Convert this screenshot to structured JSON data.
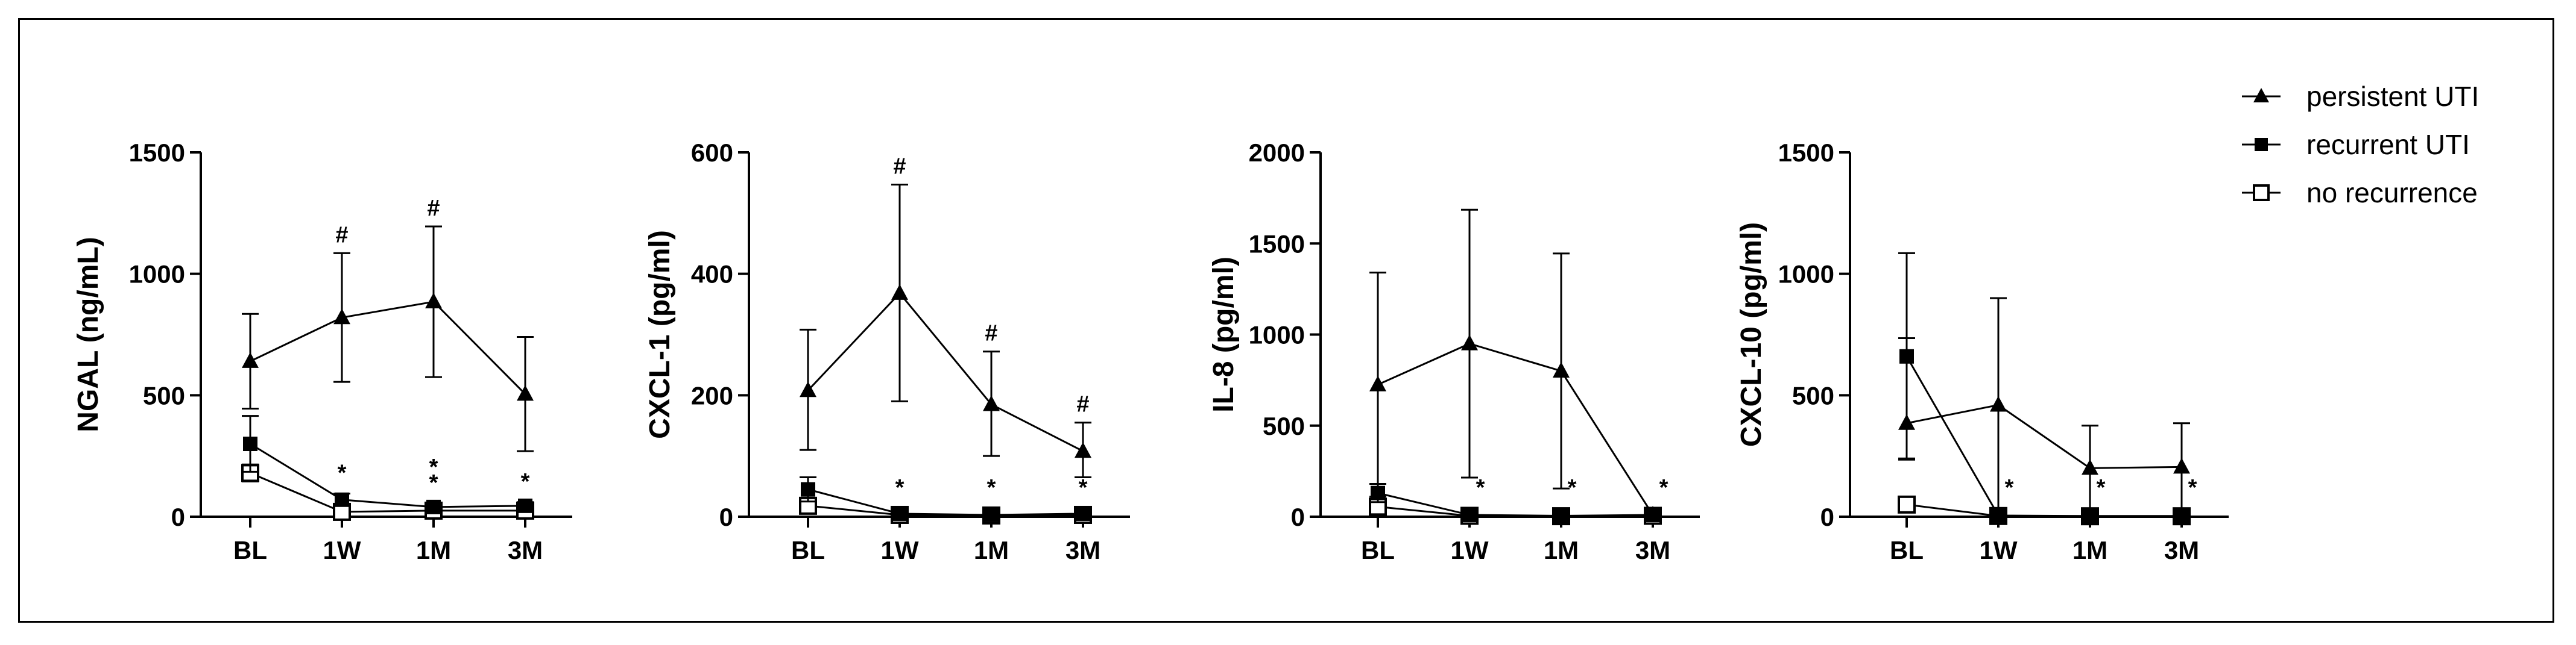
{
  "legend": [
    {
      "name": "persistent UTI",
      "marker": "triangle"
    },
    {
      "name": "recurrent UTI",
      "marker": "square-filled"
    },
    {
      "name": "no recurrence",
      "marker": "square-open"
    }
  ],
  "chart_data": [
    {
      "type": "line",
      "ylabel": "NGAL (ng/mL)",
      "categories": [
        "BL",
        "1W",
        "1M",
        "3M"
      ],
      "ylim": [
        0,
        1500
      ],
      "yticks": [
        0,
        500,
        1000,
        1500
      ],
      "series": [
        {
          "name": "persistent UTI",
          "values": [
            640,
            820,
            885,
            505
          ],
          "err_hi": [
            835,
            1085,
            1195,
            740
          ],
          "err_lo": [
            445,
            555,
            575,
            270
          ]
        },
        {
          "name": "recurrent UTI",
          "values": [
            300,
            70,
            40,
            45
          ],
          "err_hi": [
            415,
            95,
            55,
            60
          ],
          "err_lo": [
            185,
            45,
            25,
            30
          ]
        },
        {
          "name": "no recurrence",
          "values": [
            180,
            20,
            25,
            25
          ],
          "err_hi": [
            215,
            30,
            35,
            35
          ],
          "err_lo": [
            145,
            10,
            15,
            15
          ]
        }
      ],
      "annotations": [
        {
          "category": "1W",
          "y": 1085,
          "text": "#"
        },
        {
          "category": "1M",
          "y": 1195,
          "text": "#"
        },
        {
          "category": "1W",
          "y": 95,
          "text": "*"
        },
        {
          "category": "1M",
          "y": 55,
          "text": "*"
        },
        {
          "category": "1M",
          "y": 55,
          "text": "*"
        },
        {
          "category": "3M",
          "y": 60,
          "text": "*"
        }
      ]
    },
    {
      "type": "line",
      "ylabel": "CXCL-1 (pg/ml)",
      "categories": [
        "BL",
        "1W",
        "1M",
        "3M"
      ],
      "ylim": [
        0,
        600
      ],
      "yticks": [
        0,
        200,
        400,
        600
      ],
      "series": [
        {
          "name": "persistent UTI",
          "values": [
            208,
            368,
            185,
            108
          ],
          "err_hi": [
            308,
            547,
            272,
            155
          ],
          "err_lo": [
            110,
            190,
            100,
            65
          ]
        },
        {
          "name": "recurrent UTI",
          "values": [
            45,
            5,
            3,
            5
          ],
          "err_hi": [
            65,
            8,
            5,
            8
          ],
          "err_lo": [
            25,
            2,
            1,
            2
          ]
        },
        {
          "name": "no recurrence",
          "values": [
            18,
            3,
            2,
            3
          ],
          "err_hi": [
            25,
            5,
            3,
            5
          ],
          "err_lo": [
            10,
            1,
            1,
            1
          ]
        }
      ],
      "annotations": [
        {
          "category": "1W",
          "y": 547,
          "text": "#"
        },
        {
          "category": "1M",
          "y": 272,
          "text": "#"
        },
        {
          "category": "3M",
          "y": 155,
          "text": "#"
        },
        {
          "category": "1W",
          "y": 8,
          "text": "*"
        },
        {
          "category": "1M",
          "y": 5,
          "text": "*"
        },
        {
          "category": "3M",
          "y": 8,
          "text": "*"
        }
      ]
    },
    {
      "type": "line",
      "ylabel": "IL-8 (pg/ml)",
      "categories": [
        "BL",
        "1W",
        "1M",
        "3M"
      ],
      "ylim": [
        0,
        2000
      ],
      "yticks": [
        0,
        500,
        1000,
        1500,
        2000
      ],
      "series": [
        {
          "name": "persistent UTI",
          "values": [
            725,
            950,
            800,
            10
          ],
          "err_hi": [
            1340,
            1685,
            1445,
            20
          ],
          "err_lo": [
            110,
            215,
            155,
            0
          ]
        },
        {
          "name": "recurrent UTI",
          "values": [
            130,
            10,
            5,
            10
          ],
          "err_hi": [
            180,
            15,
            8,
            15
          ],
          "err_lo": [
            80,
            5,
            2,
            5
          ]
        },
        {
          "name": "no recurrence",
          "values": [
            55,
            5,
            3,
            5
          ],
          "err_hi": [
            75,
            8,
            5,
            8
          ],
          "err_lo": [
            35,
            2,
            1,
            2
          ]
        }
      ],
      "annotations": [
        {
          "category": "1W",
          "y": 15,
          "text": "*"
        },
        {
          "category": "1M",
          "y": 8,
          "text": "*"
        },
        {
          "category": "3M",
          "y": 20,
          "text": "*"
        }
      ]
    },
    {
      "type": "line",
      "ylabel": "CXCL-10 (pg/ml)",
      "categories": [
        "BL",
        "1W",
        "1M",
        "3M"
      ],
      "ylim": [
        0,
        1500
      ],
      "yticks": [
        0,
        500,
        1000,
        1500
      ],
      "series": [
        {
          "name": "persistent UTI",
          "values": [
            385,
            460,
            200,
            205
          ],
          "err_hi": [
            735,
            900,
            375,
            385
          ],
          "err_lo": [
            240,
            30,
            25,
            25
          ]
        },
        {
          "name": "recurrent UTI",
          "values": [
            660,
            5,
            3,
            3
          ],
          "err_hi": [
            1085,
            8,
            5,
            5
          ],
          "err_lo": [
            235,
            2,
            1,
            1
          ]
        },
        {
          "name": "no recurrence",
          "values": [
            50,
            3,
            2,
            2
          ],
          "err_hi": [
            70,
            5,
            3,
            3
          ],
          "err_lo": [
            30,
            1,
            1,
            1
          ]
        }
      ],
      "annotations": [
        {
          "category": "1W",
          "y": 8,
          "text": "*"
        },
        {
          "category": "1M",
          "y": 5,
          "text": "*"
        },
        {
          "category": "3M",
          "y": 5,
          "text": "*"
        }
      ]
    }
  ]
}
